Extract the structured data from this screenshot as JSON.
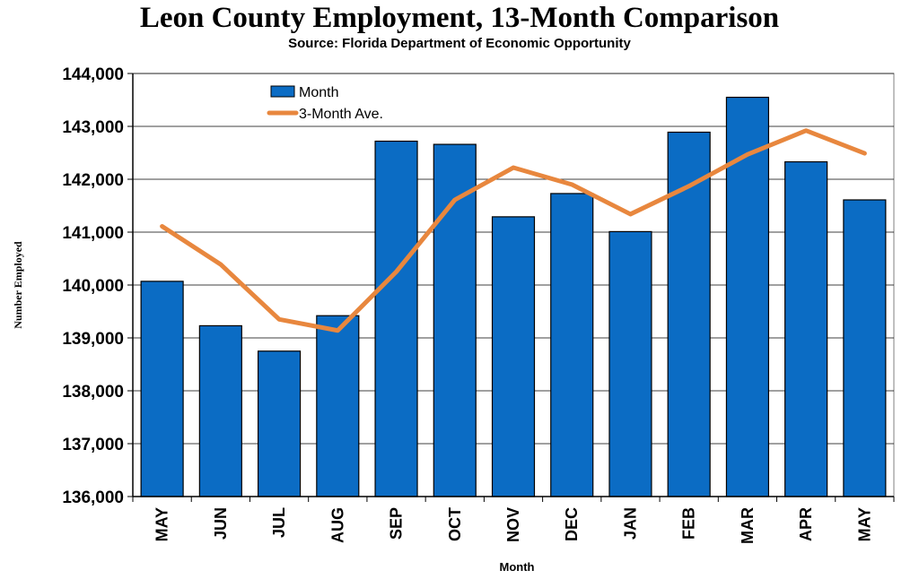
{
  "chart_data": {
    "type": "bar",
    "title": "Leon County Employment, 13-Month Comparison",
    "subtitle": "Source: Florida Department of Economic Opportunity",
    "xlabel": "Month",
    "ylabel": "Number Employed",
    "categories": [
      "MAY",
      "JUN",
      "JUL",
      "AUG",
      "SEP",
      "OCT",
      "NOV",
      "DEC",
      "JAN",
      "FEB",
      "MAR",
      "APR",
      "MAY"
    ],
    "series": [
      {
        "name": "Month",
        "type": "bar",
        "color": "#0B6CC4",
        "values": [
          140070,
          139230,
          138750,
          139420,
          142720,
          142660,
          141290,
          141730,
          141010,
          142890,
          143550,
          142330,
          141610
        ]
      },
      {
        "name": "3-Month Ave.",
        "type": "line",
        "color": "#E8873E",
        "values": [
          141110,
          140390,
          139350,
          139140,
          140250,
          141610,
          142220,
          141900,
          141340,
          141870,
          142470,
          142920,
          142490
        ]
      }
    ],
    "ylim": [
      136000,
      144000
    ],
    "yticks": [
      136000,
      137000,
      138000,
      139000,
      140000,
      141000,
      142000,
      143000,
      144000
    ],
    "ytick_labels": [
      "136,000",
      "137,000",
      "138,000",
      "139,000",
      "140,000",
      "141,000",
      "142,000",
      "143,000",
      "144,000"
    ],
    "grid": true,
    "legend_position": "top-left"
  }
}
